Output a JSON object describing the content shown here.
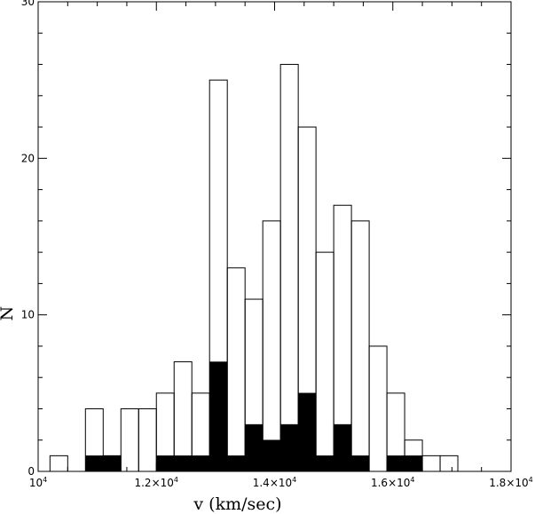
{
  "chart_data": {
    "type": "bar",
    "xlabel": "v (km/sec)",
    "ylabel": "N",
    "xlim": [
      10000,
      18000
    ],
    "ylim": [
      0,
      30
    ],
    "bin_width": 300,
    "bin_start": 10200,
    "x_ticks": [
      {
        "value": 10000,
        "mantissa": "10",
        "exponent": "4"
      },
      {
        "value": 12000,
        "mantissa": "1.2×10",
        "exponent": "4"
      },
      {
        "value": 14000,
        "mantissa": "1.4×10",
        "exponent": "4"
      },
      {
        "value": 16000,
        "mantissa": "1.6×10",
        "exponent": "4"
      },
      {
        "value": 18000,
        "mantissa": "1.8×10",
        "exponent": "4"
      }
    ],
    "y_ticks": [
      {
        "value": 0,
        "label": "0"
      },
      {
        "value": 10,
        "label": "10"
      },
      {
        "value": 20,
        "label": "20"
      },
      {
        "value": 30,
        "label": "30"
      }
    ],
    "series": [
      {
        "style": "outline",
        "values": [
          1,
          0,
          4,
          1,
          4,
          4,
          5,
          7,
          5,
          25,
          13,
          11,
          16,
          26,
          22,
          14,
          17,
          16,
          8,
          5,
          2,
          1,
          1,
          0,
          0
        ]
      },
      {
        "style": "filled",
        "values": [
          0,
          0,
          1,
          1,
          0,
          0,
          1,
          1,
          1,
          7,
          1,
          3,
          2,
          3,
          5,
          1,
          3,
          1,
          0,
          1,
          1,
          0,
          0,
          0,
          0
        ]
      }
    ]
  }
}
